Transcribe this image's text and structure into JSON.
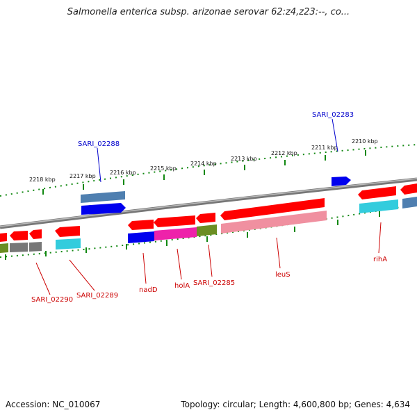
{
  "title": "Salmonella enterica subsp. arizonae serovar 62:z4,z23:--, co...",
  "footer": {
    "accession": "Accession: NC_010067",
    "summary": "Topology: circular; Length: 4,600,800 bp; Genes: 4,634"
  },
  "scale": {
    "tick_labels": [
      "2218 kbp",
      "2217 kbp",
      "2216 kbp",
      "2215 kbp",
      "2214 kbp",
      "2213 kbp",
      "2212 kbp",
      "2211 kbp",
      "2210 kbp"
    ]
  },
  "genes": {
    "sari_02283": "SARI_02283",
    "sari_02288": "SARI_02288",
    "sari_02290": "SARI_02290",
    "sari_02289": "SARI_02289",
    "nadD": "nadD",
    "holA": "holA",
    "sari_02285": "SARI_02285",
    "leuS": "leuS",
    "rihA": "rihA"
  },
  "colors": {
    "forward_label": "#0000cc",
    "reverse_label": "#cc0000",
    "backbone": "#888888",
    "tick": "#118811",
    "cds_red": "#ff0000",
    "cds_blue": "#0000ee",
    "cds_steel": "#4f7fb0",
    "cds_cyan": "#33ccdd",
    "cds_pink": "#f090a0",
    "cds_magenta": "#ee22aa",
    "cds_olive": "#6b8e23",
    "cds_gray": "#777777"
  }
}
